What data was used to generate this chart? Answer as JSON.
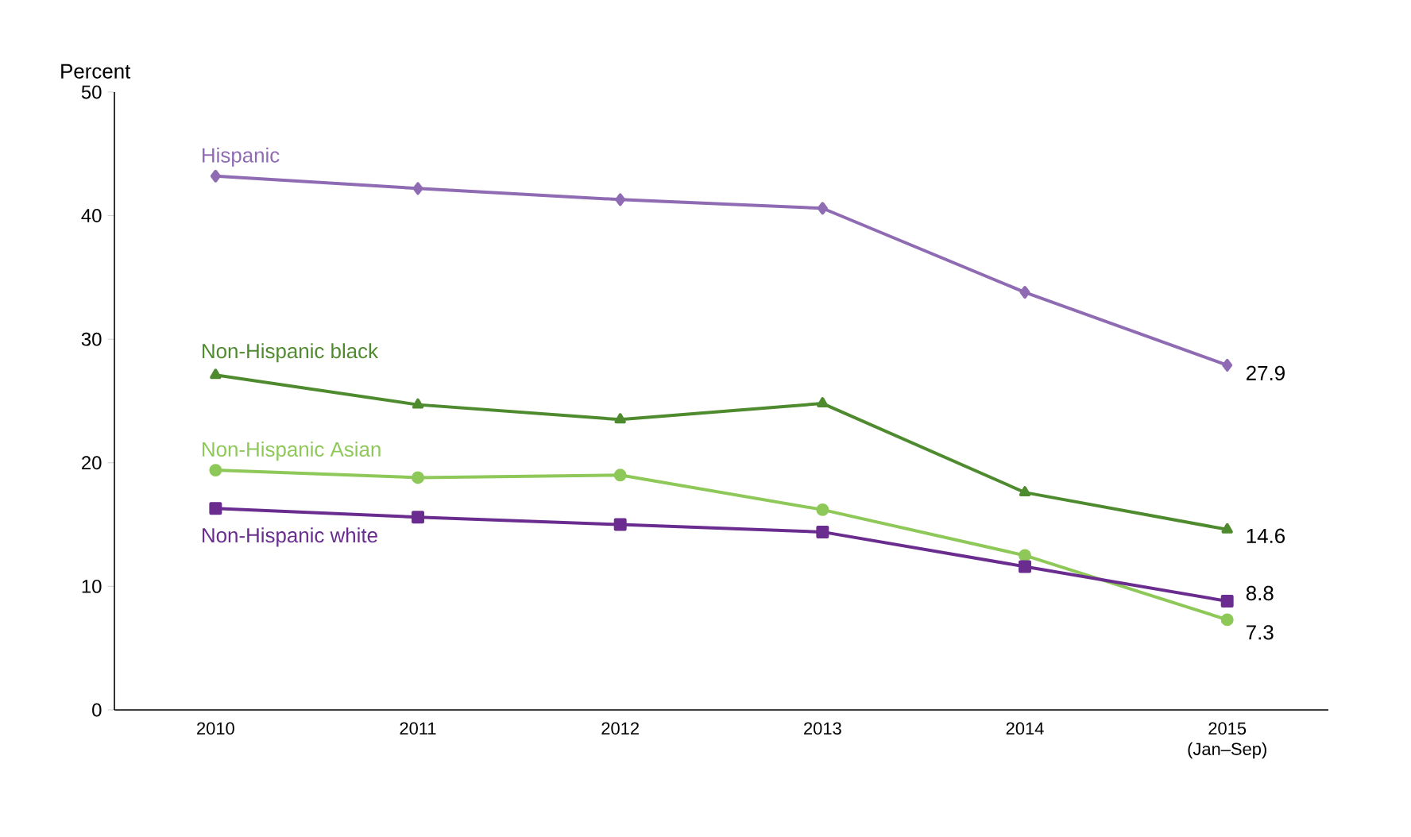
{
  "chart_data": {
    "type": "line",
    "ylabel": "Percent",
    "categories": [
      "2010",
      "2011",
      "2012",
      "2013",
      "2014",
      "2015 (Jan–Sep)"
    ],
    "ylim": [
      0,
      50
    ],
    "yticks": [
      0,
      10,
      20,
      30,
      40,
      50
    ],
    "grid": false,
    "line_style": "solid",
    "series": [
      {
        "name": "Hispanic",
        "color": "#8e6bb3",
        "marker": "diamond",
        "values": [
          43.2,
          42.2,
          41.3,
          40.6,
          33.8,
          27.9
        ],
        "value_labels": [
          null,
          null,
          null,
          null,
          null,
          "27.9"
        ]
      },
      {
        "name": "Non-Hispanic black",
        "color": "#4e8a2e",
        "marker": "triangle",
        "values": [
          27.1,
          24.7,
          23.5,
          24.8,
          17.6,
          14.6
        ],
        "value_labels": [
          null,
          null,
          null,
          null,
          null,
          "14.6"
        ]
      },
      {
        "name": "Non-Hispanic Asian",
        "color": "#8dc858",
        "marker": "circle",
        "values": [
          19.4,
          18.8,
          19.0,
          16.2,
          12.5,
          7.3
        ],
        "value_labels": [
          null,
          null,
          null,
          null,
          null,
          "7.3"
        ]
      },
      {
        "name": "Non-Hispanic white",
        "color": "#6a2d8f",
        "marker": "square",
        "values": [
          16.3,
          15.6,
          15.0,
          14.4,
          11.6,
          8.8
        ],
        "value_labels": [
          null,
          null,
          null,
          null,
          null,
          "8.8"
        ]
      }
    ]
  }
}
